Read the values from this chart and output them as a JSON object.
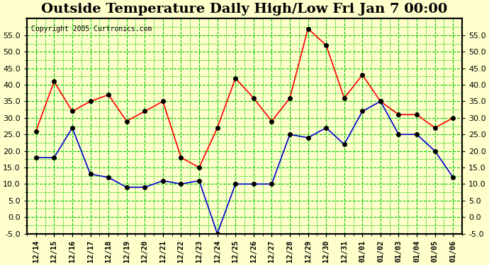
{
  "title": "Outside Temperature Daily High/Low Fri Jan 7 00:00",
  "copyright": "Copyright 2005 Curtronics.com",
  "labels": [
    "12/14",
    "12/15",
    "12/16",
    "12/17",
    "12/18",
    "12/19",
    "12/20",
    "12/21",
    "12/22",
    "12/23",
    "12/24",
    "12/25",
    "12/26",
    "12/27",
    "12/28",
    "12/29",
    "12/30",
    "12/31",
    "01/01",
    "01/02",
    "01/03",
    "01/04",
    "01/05",
    "01/06"
  ],
  "high": [
    26,
    41,
    32,
    35,
    37,
    29,
    32,
    35,
    18,
    15,
    27,
    42,
    36,
    29,
    36,
    57,
    52,
    36,
    43,
    35,
    31,
    31,
    27,
    30
  ],
  "low": [
    18,
    18,
    27,
    13,
    12,
    9,
    9,
    11,
    10,
    11,
    -5,
    10,
    10,
    10,
    25,
    24,
    27,
    22,
    32,
    35,
    25,
    25,
    20,
    12
  ],
  "high_color": "#ff0000",
  "low_color": "#0000cc",
  "marker_color": "#000000",
  "bg_color": "#ffffcc",
  "grid_color": "#00cc00",
  "title_fontsize": 14,
  "ylim": [
    -5,
    60
  ],
  "yticks": [
    -5.0,
    0.0,
    5.0,
    10.0,
    15.0,
    20.0,
    25.0,
    30.0,
    35.0,
    40.0,
    45.0,
    50.0,
    55.0
  ],
  "border_color": "#000000"
}
